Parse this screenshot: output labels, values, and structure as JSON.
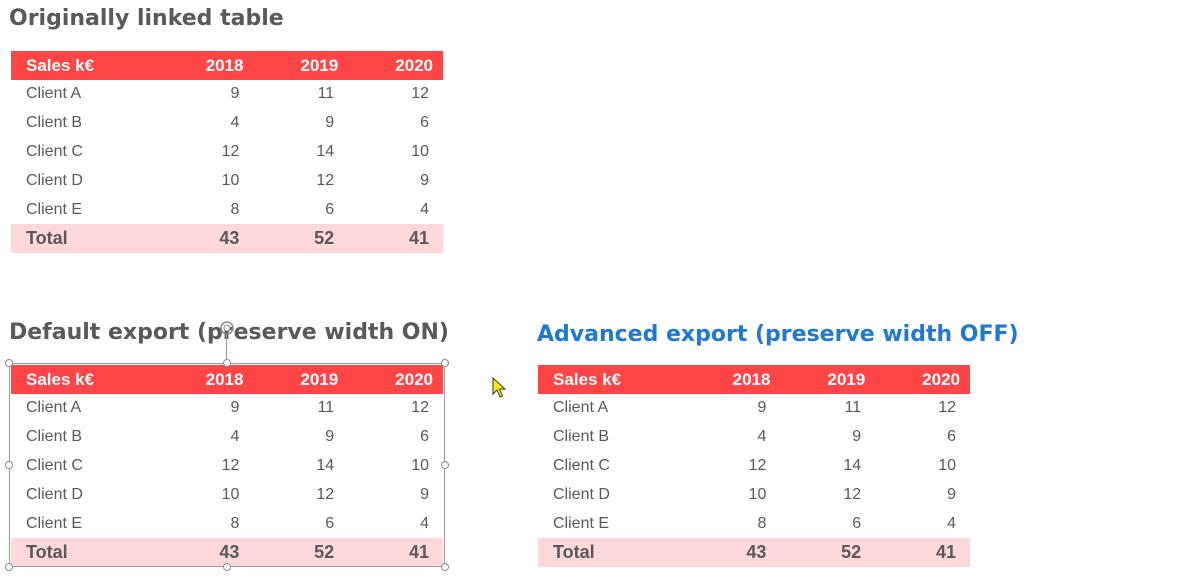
{
  "titles": {
    "original": "Originally linked table",
    "default_export": "Default export (preserve width ON)",
    "advanced_export": "Advanced export (preserve width OFF)"
  },
  "colors": {
    "header_bg": "#ff4545",
    "total_bg": "#ffd9d9",
    "title_gray": "#595959",
    "title_blue": "#1f78d1"
  },
  "tables": {
    "original": {
      "header": [
        "Sales k€",
        "2018",
        "2019",
        "2020"
      ],
      "rows": [
        [
          "Client A",
          "9",
          "11",
          "12"
        ],
        [
          "Client B",
          "4",
          "9",
          "6"
        ],
        [
          "Client C",
          "12",
          "14",
          "10"
        ],
        [
          "Client D",
          "10",
          "12",
          "9"
        ],
        [
          "Client E",
          "8",
          "6",
          "4"
        ]
      ],
      "total": [
        "Total",
        "43",
        "52",
        "41"
      ]
    },
    "default_export": {
      "header": [
        "Sales k€",
        "2018",
        "2019",
        "2020"
      ],
      "rows": [
        [
          "Client A",
          "9",
          "11",
          "12"
        ],
        [
          "Client B",
          "4",
          "9",
          "6"
        ],
        [
          "Client C",
          "12",
          "14",
          "10"
        ],
        [
          "Client D",
          "10",
          "12",
          "9"
        ],
        [
          "Client E",
          "8",
          "6",
          "4"
        ]
      ],
      "total": [
        "Total",
        "43",
        "52",
        "41"
      ]
    },
    "advanced_export": {
      "header": [
        "Sales k€",
        "2018",
        "2019",
        "2020"
      ],
      "rows": [
        [
          "Client A",
          "9",
          "11",
          "12"
        ],
        [
          "Client B",
          "4",
          "9",
          "6"
        ],
        [
          "Client C",
          "12",
          "14",
          "10"
        ],
        [
          "Client D",
          "10",
          "12",
          "9"
        ],
        [
          "Client E",
          "8",
          "6",
          "4"
        ]
      ],
      "total": [
        "Total",
        "43",
        "52",
        "41"
      ]
    }
  },
  "icons": {
    "rotate_handle": "rotate-handle-icon",
    "cursor": "mouse-pointer-icon"
  }
}
